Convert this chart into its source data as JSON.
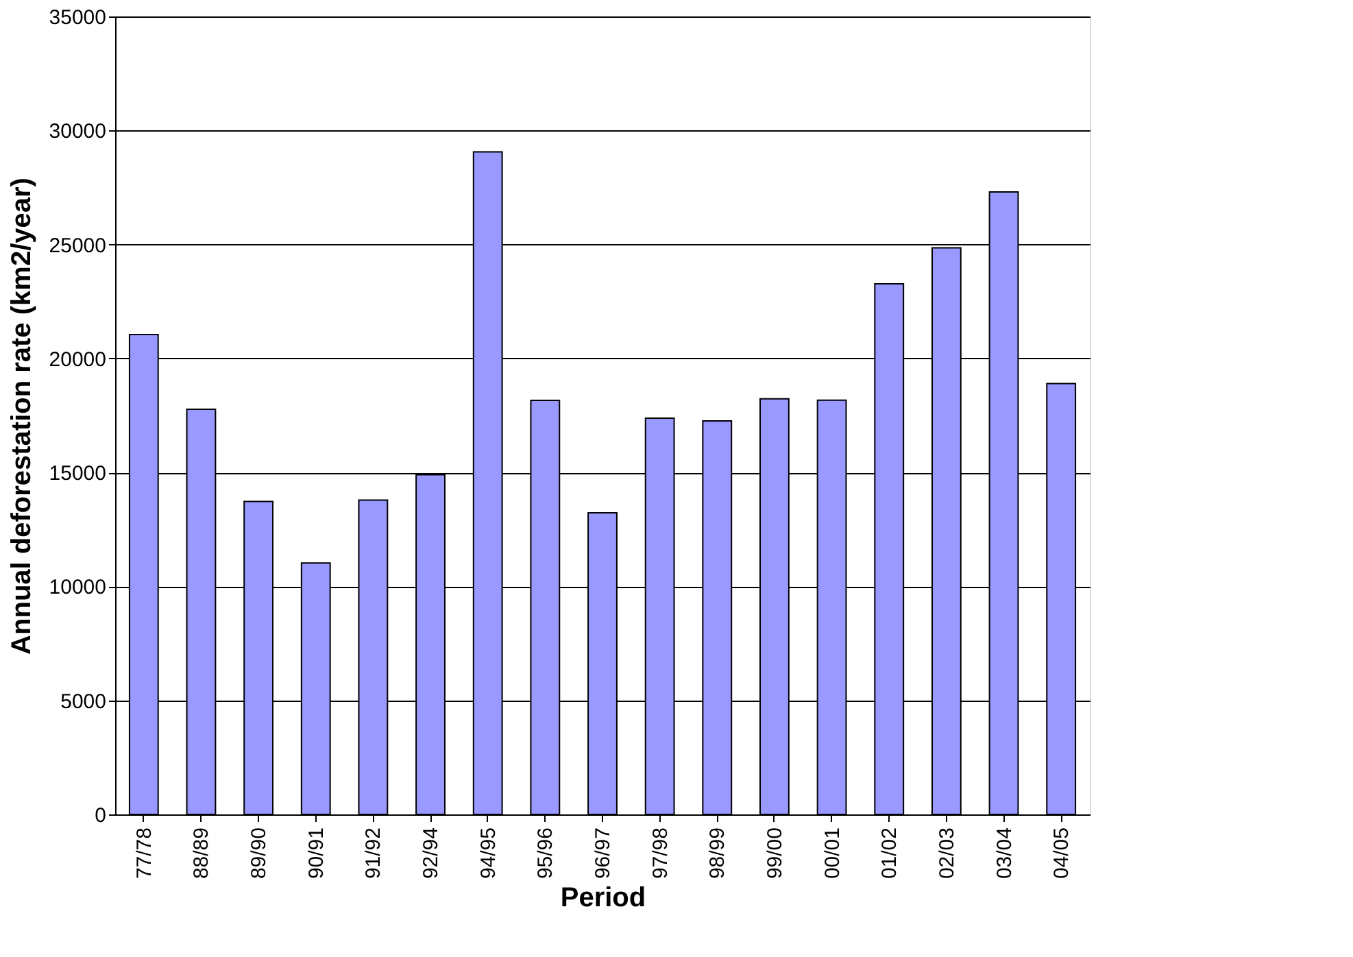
{
  "chart_data": {
    "type": "bar",
    "xlabel": "Period",
    "ylabel": "Annual deforestation rate (km2/year)",
    "categories": [
      "77/78",
      "88/89",
      "89/90",
      "90/91",
      "91/92",
      "92/94",
      "94/95",
      "95/96",
      "96/97",
      "97/98",
      "98/99",
      "99/00",
      "00/01",
      "01/02",
      "02/03",
      "03/04",
      "04/05"
    ],
    "values": [
      21050,
      17770,
      13730,
      11030,
      13790,
      14900,
      29060,
      18160,
      13230,
      17380,
      17260,
      18230,
      18170,
      23270,
      24850,
      27300,
      18900
    ],
    "color": "#9999ff",
    "ylim": [
      0,
      35000
    ],
    "yticks": [
      0,
      5000,
      10000,
      15000,
      20000,
      25000,
      30000,
      35000
    ],
    "grid": "y"
  }
}
